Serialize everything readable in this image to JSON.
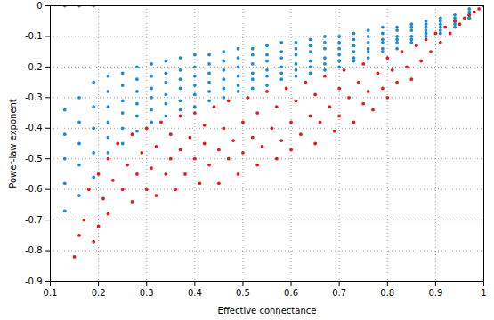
{
  "chart_data": {
    "type": "scatter",
    "xlabel": "Effective connectance",
    "ylabel": "Power-law exponent",
    "xlim": [
      0.1,
      1
    ],
    "xticks": [
      0.1,
      0.2,
      0.3,
      0.4,
      0.5,
      0.6,
      0.7,
      0.8,
      0.9,
      1
    ],
    "ylim": [
      -0.9,
      0
    ],
    "yticks": [
      -0.9,
      -0.8,
      -0.7,
      -0.6,
      -0.5,
      -0.4,
      -0.3,
      -0.2,
      -0.1,
      0
    ],
    "grid": true,
    "series": [
      {
        "color": "#1a8bd3",
        "marker": "circle",
        "x": [
          0.13,
          0.13,
          0.13,
          0.13,
          0.13,
          0.13,
          0.16,
          0.16,
          0.16,
          0.16,
          0.16,
          0.16,
          0.19,
          0.19,
          0.19,
          0.19,
          0.19,
          0.19,
          0.22,
          0.22,
          0.22,
          0.22,
          0.22,
          0.22,
          0.25,
          0.25,
          0.25,
          0.25,
          0.25,
          0.25,
          0.28,
          0.28,
          0.28,
          0.28,
          0.28,
          0.28,
          0.31,
          0.31,
          0.31,
          0.31,
          0.31,
          0.31,
          0.34,
          0.34,
          0.34,
          0.34,
          0.34,
          0.34,
          0.37,
          0.37,
          0.37,
          0.37,
          0.37,
          0.37,
          0.4,
          0.4,
          0.4,
          0.4,
          0.4,
          0.4,
          0.43,
          0.43,
          0.43,
          0.43,
          0.43,
          0.43,
          0.46,
          0.46,
          0.46,
          0.46,
          0.46,
          0.46,
          0.49,
          0.49,
          0.49,
          0.49,
          0.49,
          0.49,
          0.52,
          0.52,
          0.52,
          0.52,
          0.52,
          0.52,
          0.55,
          0.55,
          0.55,
          0.55,
          0.55,
          0.55,
          0.58,
          0.58,
          0.58,
          0.58,
          0.58,
          0.58,
          0.61,
          0.61,
          0.61,
          0.61,
          0.61,
          0.61,
          0.64,
          0.64,
          0.64,
          0.64,
          0.64,
          0.64,
          0.67,
          0.67,
          0.67,
          0.67,
          0.67,
          0.67,
          0.7,
          0.7,
          0.7,
          0.7,
          0.7,
          0.7,
          0.73,
          0.73,
          0.73,
          0.73,
          0.73,
          0.73,
          0.76,
          0.76,
          0.76,
          0.76,
          0.76,
          0.76,
          0.79,
          0.79,
          0.79,
          0.79,
          0.79,
          0.79,
          0.82,
          0.82,
          0.82,
          0.82,
          0.82,
          0.82,
          0.85,
          0.85,
          0.85,
          0.85,
          0.85,
          0.85,
          0.88,
          0.88,
          0.88,
          0.88,
          0.88,
          0.88,
          0.91,
          0.91,
          0.91,
          0.91,
          0.91,
          0.91,
          0.94,
          0.94,
          0.94,
          0.94,
          0.94,
          0.94,
          0.97,
          0.97,
          0.97,
          0.97,
          0.97,
          0.97,
          1
        ],
        "values": [
          0,
          -0.34,
          -0.42,
          -0.5,
          -0.58,
          -0.67,
          0,
          -0.3,
          -0.38,
          -0.45,
          -0.52,
          -0.62,
          0,
          -0.25,
          -0.33,
          -0.4,
          -0.48,
          -0.56,
          -0.23,
          -0.28,
          -0.33,
          -0.38,
          -0.43,
          -0.48,
          -0.22,
          -0.26,
          -0.31,
          -0.35,
          -0.4,
          -0.45,
          -0.2,
          -0.24,
          -0.28,
          -0.32,
          -0.36,
          -0.41,
          -0.19,
          -0.23,
          -0.27,
          -0.3,
          -0.34,
          -0.38,
          -0.18,
          -0.22,
          -0.25,
          -0.29,
          -0.32,
          -0.36,
          -0.17,
          -0.21,
          -0.24,
          -0.27,
          -0.31,
          -0.34,
          -0.16,
          -0.2,
          -0.23,
          -0.26,
          -0.29,
          -0.33,
          -0.16,
          -0.19,
          -0.22,
          -0.25,
          -0.28,
          -0.31,
          -0.15,
          -0.18,
          -0.21,
          -0.24,
          -0.27,
          -0.3,
          -0.14,
          -0.17,
          -0.2,
          -0.23,
          -0.26,
          -0.28,
          -0.14,
          -0.16,
          -0.19,
          -0.22,
          -0.24,
          -0.27,
          -0.13,
          -0.16,
          -0.18,
          -0.21,
          -0.23,
          -0.26,
          -0.12,
          -0.15,
          -0.17,
          -0.2,
          -0.22,
          -0.24,
          -0.12,
          -0.14,
          -0.16,
          -0.19,
          -0.21,
          -0.23,
          -0.11,
          -0.13,
          -0.15,
          -0.18,
          -0.2,
          -0.22,
          -0.1,
          -0.12,
          -0.14,
          -0.17,
          -0.19,
          -0.21,
          -0.1,
          -0.12,
          -0.14,
          -0.16,
          -0.18,
          -0.2,
          -0.09,
          -0.11,
          -0.13,
          -0.15,
          -0.17,
          -0.18,
          -0.08,
          -0.1,
          -0.12,
          -0.14,
          -0.15,
          -0.17,
          -0.07,
          -0.09,
          -0.11,
          -0.12,
          -0.14,
          -0.15,
          -0.07,
          -0.08,
          -0.1,
          -0.11,
          -0.12,
          -0.14,
          -0.06,
          -0.07,
          -0.08,
          -0.1,
          -0.11,
          -0.12,
          -0.05,
          -0.06,
          -0.07,
          -0.08,
          -0.09,
          -0.1,
          -0.04,
          -0.05,
          -0.06,
          -0.07,
          -0.08,
          -0.09,
          -0.03,
          -0.04,
          -0.05,
          -0.05,
          -0.06,
          -0.07,
          -0.01,
          -0.02,
          -0.03,
          -0.03,
          -0.04,
          -0.04,
          0
        ]
      },
      {
        "color": "#e8181c",
        "marker": "circle",
        "x": [
          0.15,
          0.16,
          0.17,
          0.18,
          0.19,
          0.2,
          0.2,
          0.21,
          0.22,
          0.22,
          0.23,
          0.24,
          0.25,
          0.26,
          0.27,
          0.27,
          0.28,
          0.29,
          0.3,
          0.3,
          0.31,
          0.32,
          0.32,
          0.33,
          0.34,
          0.35,
          0.35,
          0.36,
          0.37,
          0.37,
          0.38,
          0.39,
          0.4,
          0.4,
          0.41,
          0.42,
          0.42,
          0.43,
          0.44,
          0.45,
          0.45,
          0.46,
          0.47,
          0.47,
          0.48,
          0.49,
          0.5,
          0.5,
          0.51,
          0.52,
          0.53,
          0.53,
          0.54,
          0.55,
          0.56,
          0.57,
          0.57,
          0.58,
          0.59,
          0.6,
          0.6,
          0.61,
          0.62,
          0.63,
          0.64,
          0.65,
          0.65,
          0.66,
          0.67,
          0.68,
          0.69,
          0.7,
          0.7,
          0.71,
          0.72,
          0.73,
          0.74,
          0.75,
          0.75,
          0.76,
          0.77,
          0.78,
          0.79,
          0.8,
          0.8,
          0.81,
          0.82,
          0.83,
          0.84,
          0.85,
          0.86,
          0.87,
          0.88,
          0.89,
          0.9,
          0.91,
          0.92,
          0.93,
          0.94,
          0.95,
          0.96,
          0.97,
          0.98,
          0.99,
          1
        ],
        "values": [
          -0.82,
          -0.75,
          -0.7,
          -0.6,
          -0.77,
          -0.72,
          -0.55,
          -0.63,
          -0.5,
          -0.68,
          -0.57,
          -0.45,
          -0.6,
          -0.52,
          -0.64,
          -0.42,
          -0.55,
          -0.48,
          -0.6,
          -0.4,
          -0.53,
          -0.62,
          -0.46,
          -0.38,
          -0.55,
          -0.5,
          -0.42,
          -0.6,
          -0.47,
          -0.36,
          -0.55,
          -0.43,
          -0.5,
          -0.35,
          -0.58,
          -0.45,
          -0.39,
          -0.52,
          -0.33,
          -0.47,
          -0.58,
          -0.4,
          -0.5,
          -0.31,
          -0.44,
          -0.55,
          -0.38,
          -0.48,
          -0.3,
          -0.43,
          -0.52,
          -0.35,
          -0.46,
          -0.28,
          -0.4,
          -0.5,
          -0.33,
          -0.44,
          -0.27,
          -0.38,
          -0.47,
          -0.31,
          -0.42,
          -0.25,
          -0.36,
          -0.45,
          -0.29,
          -0.38,
          -0.23,
          -0.33,
          -0.41,
          -0.27,
          -0.36,
          -0.21,
          -0.3,
          -0.38,
          -0.25,
          -0.32,
          -0.19,
          -0.28,
          -0.34,
          -0.22,
          -0.27,
          -0.17,
          -0.3,
          -0.21,
          -0.25,
          -0.15,
          -0.2,
          -0.24,
          -0.13,
          -0.18,
          -0.11,
          -0.15,
          -0.09,
          -0.12,
          -0.07,
          -0.09,
          -0.05,
          -0.06,
          -0.04,
          -0.03,
          -0.02,
          -0.01,
          0
        ]
      }
    ]
  }
}
